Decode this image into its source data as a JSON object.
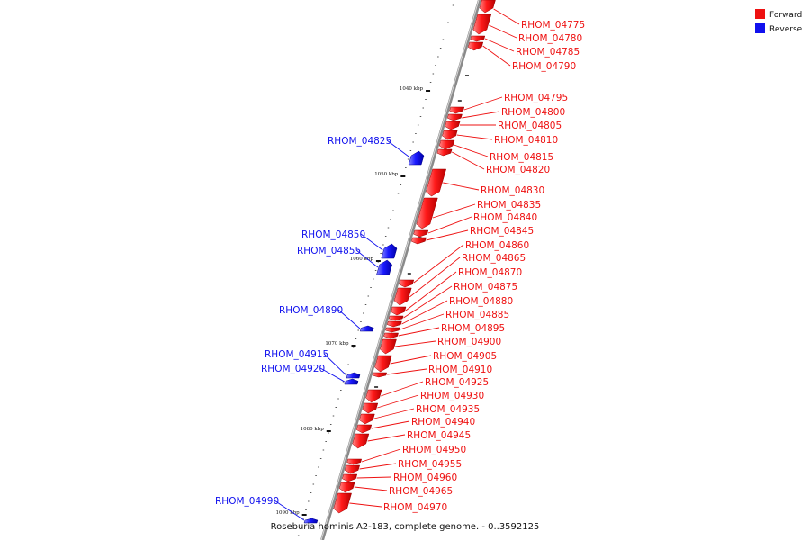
{
  "legend": {
    "forward_label": "Forward",
    "reverse_label": "Reverse",
    "forward_color": "#ee1111",
    "reverse_color": "#1111ee"
  },
  "footer": {
    "caption": "Roseburia hominis A2-183, complete genome. - 0..3592125"
  },
  "scale": {
    "tick_labels": [
      {
        "kbp": 1040,
        "label": "1040 kbp"
      },
      {
        "kbp": 1050,
        "label": "1050 kbp"
      },
      {
        "kbp": 1060,
        "label": "1060 kbp"
      },
      {
        "kbp": 1070,
        "label": "1070 kbp"
      },
      {
        "kbp": 1080,
        "label": "1080 kbp"
      },
      {
        "kbp": 1090,
        "label": "1090 kbp"
      }
    ]
  },
  "genes": [
    {
      "name": "RHOM_04775",
      "strand": "forward"
    },
    {
      "name": "RHOM_04780",
      "strand": "forward"
    },
    {
      "name": "RHOM_04785",
      "strand": "forward"
    },
    {
      "name": "RHOM_04790",
      "strand": "forward"
    },
    {
      "name": "RHOM_04795",
      "strand": "forward"
    },
    {
      "name": "RHOM_04800",
      "strand": "forward"
    },
    {
      "name": "RHOM_04805",
      "strand": "forward"
    },
    {
      "name": "RHOM_04810",
      "strand": "forward"
    },
    {
      "name": "RHOM_04815",
      "strand": "forward"
    },
    {
      "name": "RHOM_04820",
      "strand": "forward"
    },
    {
      "name": "RHOM_04825",
      "strand": "reverse"
    },
    {
      "name": "RHOM_04830",
      "strand": "forward"
    },
    {
      "name": "RHOM_04835",
      "strand": "forward"
    },
    {
      "name": "RHOM_04840",
      "strand": "forward"
    },
    {
      "name": "RHOM_04845",
      "strand": "forward"
    },
    {
      "name": "RHOM_04850",
      "strand": "reverse"
    },
    {
      "name": "RHOM_04855",
      "strand": "reverse"
    },
    {
      "name": "RHOM_04860",
      "strand": "forward"
    },
    {
      "name": "RHOM_04865",
      "strand": "forward"
    },
    {
      "name": "RHOM_04870",
      "strand": "forward"
    },
    {
      "name": "RHOM_04875",
      "strand": "forward"
    },
    {
      "name": "RHOM_04880",
      "strand": "forward"
    },
    {
      "name": "RHOM_04885",
      "strand": "forward"
    },
    {
      "name": "RHOM_04890",
      "strand": "reverse"
    },
    {
      "name": "RHOM_04895",
      "strand": "forward"
    },
    {
      "name": "RHOM_04900",
      "strand": "forward"
    },
    {
      "name": "RHOM_04905",
      "strand": "forward"
    },
    {
      "name": "RHOM_04910",
      "strand": "forward"
    },
    {
      "name": "RHOM_04915",
      "strand": "reverse"
    },
    {
      "name": "RHOM_04920",
      "strand": "reverse"
    },
    {
      "name": "RHOM_04925",
      "strand": "forward"
    },
    {
      "name": "RHOM_04930",
      "strand": "forward"
    },
    {
      "name": "RHOM_04935",
      "strand": "forward"
    },
    {
      "name": "RHOM_04940",
      "strand": "forward"
    },
    {
      "name": "RHOM_04945",
      "strand": "forward"
    },
    {
      "name": "RHOM_04950",
      "strand": "forward"
    },
    {
      "name": "RHOM_04955",
      "strand": "forward"
    },
    {
      "name": "RHOM_04960",
      "strand": "forward"
    },
    {
      "name": "RHOM_04965",
      "strand": "forward"
    },
    {
      "name": "RHOM_04970",
      "strand": "forward"
    },
    {
      "name": "RHOM_04990",
      "strand": "reverse"
    }
  ]
}
